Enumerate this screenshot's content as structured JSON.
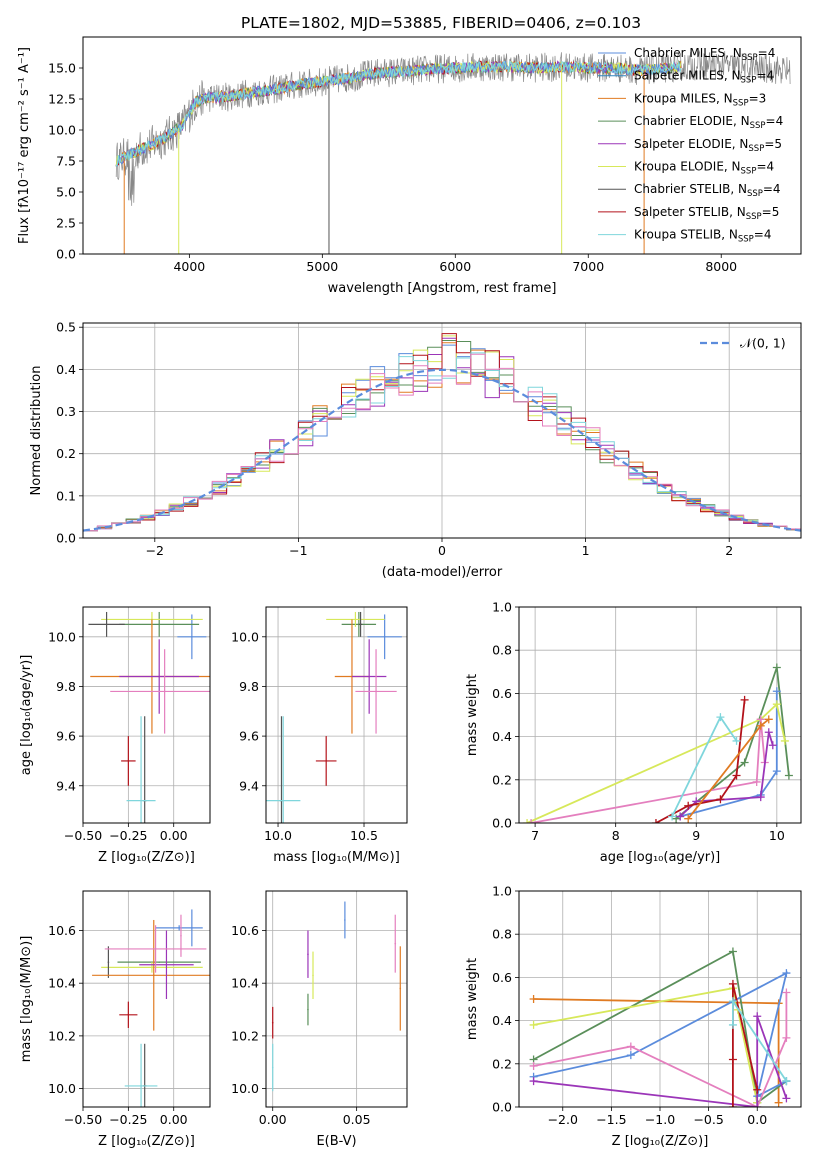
{
  "title": "PLATE=1802, MJD=53885, FIBERID=0406, z=0.103",
  "colors": {
    "chabrier_miles": "#5b8cdc",
    "salpeter_miles": "#2e86c1",
    "kroupa_miles": "#e07b22",
    "chabrier_elodie": "#5a8f5a",
    "salpeter_elodie": "#9b35b8",
    "kroupa_elodie": "#d7e85a",
    "chabrier_stelib": "#555555",
    "salpeter_stelib": "#b3131b",
    "kroupa_stelib": "#7fd6dc",
    "pink": "#e47fbe",
    "data_gray": "#888888",
    "normal_curve": "#5b8cdc"
  },
  "chart_data": [
    {
      "id": "spectrum",
      "type": "line",
      "title": "PLATE=1802, MJD=53885, FIBERID=0406, z=0.103",
      "xlabel": "wavelength [Angstrom, rest frame]",
      "ylabel": "Flux [fλ10⁻¹⁷ erg cm⁻² s⁻¹ A⁻¹]",
      "xlim": [
        3200,
        8600
      ],
      "ylim": [
        0,
        17.5
      ],
      "xticks": [
        "4000",
        "5000",
        "6000",
        "7000",
        "8000"
      ],
      "yticks": [
        "0.0",
        "2.5",
        "5.0",
        "7.5",
        "10.0",
        "12.5",
        "15.0"
      ],
      "legend_position": "right",
      "legend": [
        {
          "label": "Chabrier MILES, N",
          "sub": "SSP",
          "tail": "=4",
          "color": "chabrier_miles"
        },
        {
          "label": "Salpeter MILES, N",
          "sub": "SSP",
          "tail": "=4",
          "color": "salpeter_miles"
        },
        {
          "label": "Kroupa MILES, N",
          "sub": "SSP",
          "tail": "=3",
          "color": "kroupa_miles"
        },
        {
          "label": "Chabrier ELODIE, N",
          "sub": "SSP",
          "tail": "=4",
          "color": "chabrier_elodie"
        },
        {
          "label": "Salpeter ELODIE, N",
          "sub": "SSP",
          "tail": "=5",
          "color": "salpeter_elodie"
        },
        {
          "label": "Kroupa ELODIE, N",
          "sub": "SSP",
          "tail": "=4",
          "color": "kroupa_elodie"
        },
        {
          "label": "Chabrier STELIB, N",
          "sub": "SSP",
          "tail": "=4",
          "color": "chabrier_stelib"
        },
        {
          "label": "Salpeter STELIB, N",
          "sub": "SSP",
          "tail": "=5",
          "color": "salpeter_stelib"
        },
        {
          "label": "Kroupa STELIB, N",
          "sub": "SSP",
          "tail": "=4",
          "color": "kroupa_stelib"
        }
      ],
      "continuum": [
        [
          3450,
          7.5
        ],
        [
          3550,
          8.0
        ],
        [
          3650,
          8.5
        ],
        [
          3750,
          9.0
        ],
        [
          3850,
          9.6
        ],
        [
          3950,
          10.4
        ],
        [
          4050,
          12.3
        ],
        [
          4150,
          12.6
        ],
        [
          4300,
          12.7
        ],
        [
          4450,
          13.0
        ],
        [
          4600,
          13.2
        ],
        [
          4800,
          13.6
        ],
        [
          5000,
          13.9
        ],
        [
          5200,
          14.2
        ],
        [
          5400,
          14.6
        ],
        [
          5600,
          14.7
        ],
        [
          5800,
          14.9
        ],
        [
          6000,
          15.0
        ],
        [
          6200,
          15.1
        ],
        [
          6400,
          15.1
        ],
        [
          6600,
          15.0
        ],
        [
          6800,
          15.1
        ],
        [
          7000,
          15.0
        ],
        [
          7200,
          15.0
        ],
        [
          7400,
          14.8
        ],
        [
          7600,
          15.0
        ],
        [
          7800,
          15.2
        ],
        [
          8000,
          15.2
        ],
        [
          8200,
          15.0
        ],
        [
          8400,
          14.9
        ],
        [
          8500,
          14.8
        ]
      ],
      "spikes": [
        [
          3510,
          0
        ],
        [
          3920,
          0
        ],
        [
          5050,
          0
        ],
        [
          6800,
          0
        ],
        [
          7420,
          0
        ]
      ]
    },
    {
      "id": "residuals",
      "type": "bar",
      "xlabel": "(data-model)/error",
      "ylabel": "Normed distribution",
      "xlim": [
        -2.5,
        2.5
      ],
      "ylim": [
        0,
        0.51
      ],
      "xticks": [
        "−2",
        "−1",
        "0",
        "1",
        "2"
      ],
      "yticks": [
        "0.0",
        "0.1",
        "0.2",
        "0.3",
        "0.4",
        "0.5"
      ],
      "legend_position": "top-right",
      "normal_label": "𝒩(0, 1)",
      "bin_width": 0.1
    },
    {
      "id": "age_vs_Z",
      "type": "scatter",
      "xlabel": "Z [log₁₀(Z/Z⊙)]",
      "ylabel": "age  [log₁₀(age/yr)]",
      "xlim": [
        -0.5,
        0.2
      ],
      "ylim": [
        9.25,
        10.12
      ],
      "xticks": [
        "−0.50",
        "−0.25",
        "0.00"
      ],
      "yticks": [
        "9.4",
        "9.6",
        "9.8",
        "10.0"
      ],
      "points": [
        {
          "x": 0.1,
          "y": 10.0,
          "xe": 0.08,
          "ye": 0.09,
          "c": "chabrier_miles"
        },
        {
          "x": -0.08,
          "y": 10.05,
          "xe": 0.22,
          "ye": 0.05,
          "c": "chabrier_elodie"
        },
        {
          "x": -0.12,
          "y": 10.07,
          "xe": 0.28,
          "ye": 0.03,
          "c": "kroupa_elodie"
        },
        {
          "x": -0.37,
          "y": 10.05,
          "xe": 0.1,
          "ye": 0.05,
          "c": "chabrier_stelib"
        },
        {
          "x": -0.12,
          "y": 9.84,
          "xe": 0.34,
          "ye": 0.23,
          "c": "kroupa_miles"
        },
        {
          "x": -0.08,
          "y": 9.84,
          "xe": 0.22,
          "ye": 0.15,
          "c": "salpeter_elodie"
        },
        {
          "x": -0.05,
          "y": 9.78,
          "xe": 0.3,
          "ye": 0.17,
          "c": "pink"
        },
        {
          "x": -0.25,
          "y": 9.5,
          "xe": 0.04,
          "ye": 0.1,
          "c": "salpeter_stelib"
        },
        {
          "x": -0.16,
          "y": 9.34,
          "xe": 0.01,
          "ye": 0.34,
          "c": "chabrier_stelib"
        },
        {
          "x": -0.18,
          "y": 9.34,
          "xe": 0.08,
          "ye": 0.34,
          "c": "kroupa_stelib"
        }
      ]
    },
    {
      "id": "age_vs_mass",
      "type": "scatter",
      "xlabel": "mass [log₁₀(M/M⊙)]",
      "ylabel": "",
      "xlim": [
        9.93,
        10.75
      ],
      "ylim": [
        9.25,
        10.12
      ],
      "xticks": [
        "10.0",
        "10.5"
      ],
      "yticks": [
        "9.4",
        "9.6",
        "9.8",
        "10.0"
      ],
      "points": [
        {
          "x": 10.62,
          "y": 10.0,
          "xe": 0.1,
          "ye": 0.09,
          "c": "chabrier_miles"
        },
        {
          "x": 10.47,
          "y": 10.05,
          "xe": 0.1,
          "ye": 0.05,
          "c": "chabrier_elodie"
        },
        {
          "x": 10.45,
          "y": 10.07,
          "xe": 0.17,
          "ye": 0.03,
          "c": "kroupa_elodie"
        },
        {
          "x": 10.48,
          "y": 10.05,
          "xe": 0.01,
          "ye": 0.05,
          "c": "chabrier_stelib"
        },
        {
          "x": 10.43,
          "y": 9.84,
          "xe": 0.1,
          "ye": 0.23,
          "c": "kroupa_miles"
        },
        {
          "x": 10.53,
          "y": 9.84,
          "xe": 0.1,
          "ye": 0.15,
          "c": "salpeter_elodie"
        },
        {
          "x": 10.57,
          "y": 9.78,
          "xe": 0.12,
          "ye": 0.17,
          "c": "pink"
        },
        {
          "x": 10.28,
          "y": 9.5,
          "xe": 0.06,
          "ye": 0.1,
          "c": "salpeter_stelib"
        },
        {
          "x": 10.02,
          "y": 9.34,
          "xe": 0.01,
          "ye": 0.34,
          "c": "chabrier_stelib"
        },
        {
          "x": 10.03,
          "y": 9.34,
          "xe": 0.1,
          "ye": 0.34,
          "c": "kroupa_stelib"
        }
      ]
    },
    {
      "id": "weight_vs_age",
      "type": "line",
      "xlabel": "age  [log₁₀(age/yr)]",
      "ylabel": "mass weight",
      "xlim": [
        6.8,
        10.3
      ],
      "ylim": [
        0,
        1.0
      ],
      "xticks": [
        "7",
        "8",
        "9",
        "10"
      ],
      "yticks": [
        "0.0",
        "0.2",
        "0.4",
        "0.6",
        "0.8",
        "1.0"
      ],
      "series": [
        {
          "c": "chabrier_elodie",
          "x": [
            8.75,
            9.6,
            10.0,
            10.15
          ],
          "y": [
            0.02,
            0.28,
            0.72,
            0.22
          ]
        },
        {
          "c": "chabrier_miles",
          "x": [
            8.8,
            9.8,
            10.0,
            10.0
          ],
          "y": [
            0.03,
            0.13,
            0.24,
            0.61
          ]
        },
        {
          "c": "kroupa_elodie",
          "x": [
            6.9,
            9.8,
            10.0,
            10.1
          ],
          "y": [
            0.0,
            0.48,
            0.55,
            0.38
          ]
        },
        {
          "c": "pink",
          "x": [
            6.95,
            9.75,
            9.8,
            9.85
          ],
          "y": [
            0.0,
            0.19,
            0.48,
            0.28
          ]
        },
        {
          "c": "salpeter_elodie",
          "x": [
            8.8,
            9.0,
            9.8,
            9.9,
            9.95
          ],
          "y": [
            0.03,
            0.1,
            0.12,
            0.42,
            0.36
          ]
        },
        {
          "c": "salpeter_stelib",
          "x": [
            8.5,
            8.9,
            9.3,
            9.5,
            9.6
          ],
          "y": [
            0.0,
            0.08,
            0.11,
            0.22,
            0.57
          ]
        },
        {
          "c": "kroupa_stelib",
          "x": [
            8.7,
            9.3,
            9.5
          ],
          "y": [
            0.03,
            0.49,
            0.38
          ]
        },
        {
          "c": "kroupa_miles",
          "x": [
            8.9,
            9.8,
            9.9
          ],
          "y": [
            0.02,
            0.45,
            0.48
          ]
        }
      ]
    },
    {
      "id": "mass_vs_Z",
      "type": "scatter",
      "xlabel": "Z [log₁₀(Z/Z⊙)]",
      "ylabel": "mass [log₁₀(M/M⊙)]",
      "xlim": [
        -0.5,
        0.2
      ],
      "ylim": [
        9.93,
        10.75
      ],
      "xticks": [
        "−0.50",
        "−0.25",
        "0.00"
      ],
      "yticks": [
        "10.0",
        "10.2",
        "10.4",
        "10.6"
      ],
      "points": [
        {
          "x": 0.03,
          "y": 10.61,
          "xe": 0.13,
          "ye": 0.01,
          "c": "chabrier_miles"
        },
        {
          "x": 0.1,
          "y": 10.61,
          "xe": 0.0,
          "ye": 0.07,
          "c": "chabrier_miles"
        },
        {
          "x": 0.04,
          "y": 10.58,
          "xe": 0.0,
          "ye": 0.08,
          "c": "pink"
        },
        {
          "x": -0.08,
          "y": 10.48,
          "xe": 0.23,
          "ye": 0.0,
          "c": "chabrier_elodie"
        },
        {
          "x": -0.12,
          "y": 10.46,
          "xe": 0.28,
          "ye": 0.02,
          "c": "kroupa_elodie"
        },
        {
          "x": -0.36,
          "y": 10.48,
          "xe": 0.0,
          "ye": 0.06,
          "c": "chabrier_stelib"
        },
        {
          "x": -0.11,
          "y": 10.43,
          "xe": 0.34,
          "ye": 0.21,
          "c": "kroupa_miles"
        },
        {
          "x": -0.04,
          "y": 10.47,
          "xe": 0.15,
          "ye": 0.13,
          "c": "salpeter_elodie"
        },
        {
          "x": -0.1,
          "y": 10.53,
          "xe": 0.28,
          "ye": 0.09,
          "c": "pink"
        },
        {
          "x": -0.25,
          "y": 10.28,
          "xe": 0.05,
          "ye": 0.05,
          "c": "salpeter_stelib"
        },
        {
          "x": -0.16,
          "y": 10.01,
          "xe": 0.01,
          "ye": 0.16,
          "c": "chabrier_stelib"
        },
        {
          "x": -0.18,
          "y": 10.01,
          "xe": 0.09,
          "ye": 0.16,
          "c": "kroupa_stelib"
        }
      ]
    },
    {
      "id": "mass_vs_ebv",
      "type": "scatter",
      "xlabel": "E(B-V)",
      "ylabel": "",
      "xlim": [
        -0.004,
        0.08
      ],
      "ylim": [
        9.93,
        10.75
      ],
      "xticks": [
        "0.00",
        "0.05"
      ],
      "yticks": [
        "10.0",
        "10.2",
        "10.4",
        "10.6"
      ],
      "points": [
        {
          "x": 0.043,
          "y": 10.64,
          "xe": 0.0,
          "ye": 0.07,
          "c": "chabrier_miles"
        },
        {
          "x": 0.073,
          "y": 10.55,
          "xe": 0.0,
          "ye": 0.11,
          "c": "pink"
        },
        {
          "x": 0.076,
          "y": 10.38,
          "xe": 0.0,
          "ye": 0.16,
          "c": "kroupa_miles"
        },
        {
          "x": 0.021,
          "y": 10.51,
          "xe": 0.0,
          "ye": 0.09,
          "c": "salpeter_elodie"
        },
        {
          "x": 0.024,
          "y": 10.43,
          "xe": 0.0,
          "ye": 0.09,
          "c": "kroupa_elodie"
        },
        {
          "x": 0.021,
          "y": 10.3,
          "xe": 0.0,
          "ye": 0.06,
          "c": "chabrier_elodie"
        },
        {
          "x": 0.0,
          "y": 10.25,
          "xe": 0.0,
          "ye": 0.06,
          "c": "salpeter_stelib"
        },
        {
          "x": 0.0,
          "y": 10.08,
          "xe": 0.0,
          "ye": 0.09,
          "c": "kroupa_stelib"
        }
      ]
    },
    {
      "id": "weight_vs_Z",
      "type": "line",
      "xlabel": "Z [log₁₀(Z/Z⊙)]",
      "ylabel": "mass weight",
      "xlim": [
        -2.45,
        0.45
      ],
      "ylim": [
        0,
        1.0
      ],
      "xticks": [
        "−2.0",
        "−1.5",
        "−1.0",
        "−0.5",
        "0.0"
      ],
      "yticks": [
        "0.0",
        "0.2",
        "0.4",
        "0.6",
        "0.8",
        "1.0"
      ],
      "series": [
        {
          "c": "kroupa_miles",
          "x": [
            -2.3,
            0.22,
            0.22
          ],
          "y": [
            0.5,
            0.48,
            0.02
          ]
        },
        {
          "c": "chabrier_elodie",
          "x": [
            -2.3,
            -0.25,
            0.0,
            0.3
          ],
          "y": [
            0.22,
            0.72,
            0.02,
            0.12
          ]
        },
        {
          "c": "kroupa_elodie",
          "x": [
            -2.3,
            -0.25,
            -0.2,
            0.0
          ],
          "y": [
            0.38,
            0.55,
            0.45,
            0.02
          ]
        },
        {
          "c": "chabrier_miles",
          "x": [
            -2.3,
            -1.3,
            0.3,
            0.0,
            0.3
          ],
          "y": [
            0.14,
            0.24,
            0.62,
            0.05,
            0.12
          ]
        },
        {
          "c": "pink",
          "x": [
            -2.3,
            -1.3,
            0.0,
            0.3,
            0.3
          ],
          "y": [
            0.19,
            0.28,
            0.0,
            0.32,
            0.53
          ]
        },
        {
          "c": "salpeter_elodie",
          "x": [
            -2.3,
            0.0,
            0.0,
            0.3
          ],
          "y": [
            0.12,
            0.0,
            0.42,
            0.04
          ]
        },
        {
          "c": "salpeter_stelib",
          "x": [
            -0.25,
            -0.25,
            -0.25,
            0.0
          ],
          "y": [
            0.0,
            0.22,
            0.57,
            0.08
          ]
        },
        {
          "c": "kroupa_stelib",
          "x": [
            -0.25,
            -0.25,
            0.3
          ],
          "y": [
            0.38,
            0.49,
            0.12
          ]
        }
      ]
    }
  ]
}
